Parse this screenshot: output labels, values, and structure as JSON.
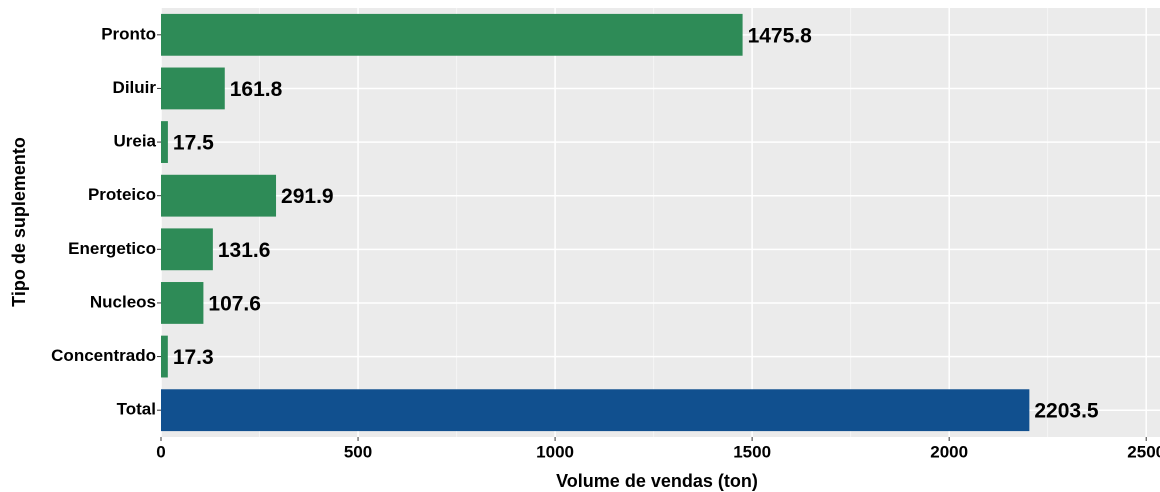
{
  "chart_data": {
    "type": "barh",
    "categories": [
      "Pronto",
      "Diluir",
      "Ureia",
      "Proteico",
      "Energetico",
      "Nucleos",
      "Concentrado",
      "Total"
    ],
    "values": [
      1475.8,
      161.8,
      17.5,
      291.9,
      131.6,
      107.6,
      17.3,
      2203.5
    ],
    "colors": [
      "#2e8b57",
      "#2e8b57",
      "#2e8b57",
      "#2e8b57",
      "#2e8b57",
      "#2e8b57",
      "#2e8b57",
      "#11508f"
    ],
    "xlabel": "Volume de vendas (ton)",
    "ylabel": "Tipo de suplemento",
    "xlim": [
      0,
      2535
    ],
    "xticks": [
      0,
      500,
      1000,
      1500,
      2000,
      2500
    ],
    "xminorticks": [
      250,
      750,
      1250,
      1750,
      2250
    ],
    "grid": true
  }
}
